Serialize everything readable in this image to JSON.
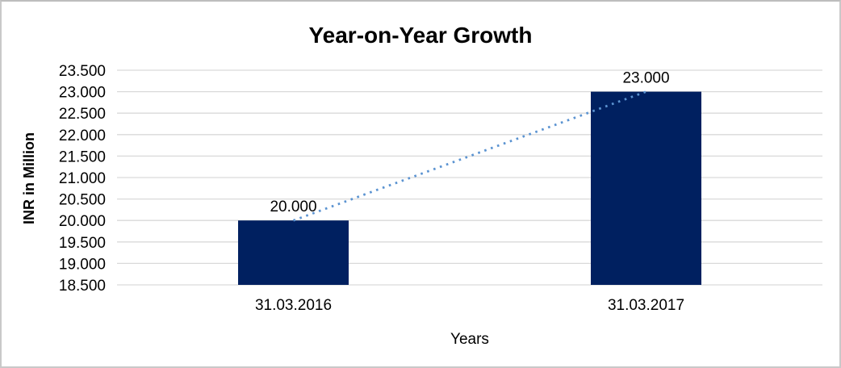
{
  "chart_data": {
    "type": "bar",
    "title": "Year-on-Year Growth",
    "xlabel": "Years",
    "ylabel": "INR in Million",
    "categories": [
      "31.03.2016",
      "31.03.2017"
    ],
    "values": [
      20.0,
      23.0
    ],
    "data_labels": [
      "20.000",
      "23.000"
    ],
    "ylim": [
      18.5,
      23.5
    ],
    "ytick_step": 0.5,
    "ytick_labels": [
      "18.500",
      "19.000",
      "19.500",
      "20.000",
      "20.500",
      "21.000",
      "21.500",
      "22.000",
      "22.500",
      "23.000",
      "23.500"
    ],
    "grid": true,
    "legend_position": "none",
    "has_trendline": true,
    "trendline_style": "dotted",
    "colors": {
      "bar": "#002060",
      "trendline": "#5b93d1",
      "gridline": "#d9d9d9",
      "text": "#000000",
      "background": "#ffffff",
      "frame_border": "#c9c9c9"
    }
  }
}
